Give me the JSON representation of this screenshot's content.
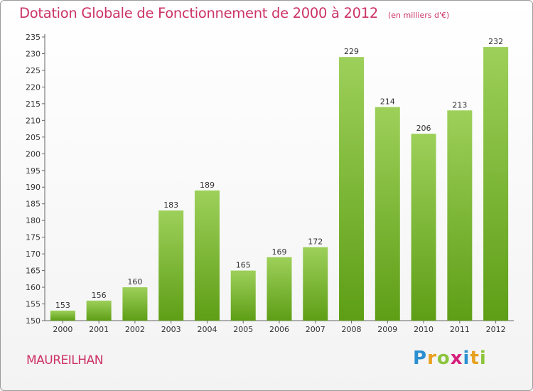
{
  "title": "Dotation Globale de Fonctionnement de 2000 à 2012",
  "subtitle": "(en milliers d'€)",
  "commune": "MAUREILHAN",
  "logo": {
    "letters": [
      {
        "ch": "P",
        "color": "#2a8fd0"
      },
      {
        "ch": "r",
        "color": "#e8a020"
      },
      {
        "ch": "o",
        "color": "#8cc43c"
      },
      {
        "ch": "x",
        "color": "#d6207c"
      },
      {
        "ch": "i",
        "color": "#2a8fd0"
      },
      {
        "ch": "t",
        "color": "#e8a020"
      },
      {
        "ch": "i",
        "color": "#8cc43c"
      }
    ]
  },
  "colors": {
    "accent": "#cc3366",
    "bar_top": "#9dd05a",
    "bar_bottom": "#5e9e16"
  },
  "chart_data": {
    "type": "bar",
    "title": "Dotation Globale de Fonctionnement de 2000 à 2012",
    "categories": [
      "2000",
      "2001",
      "2002",
      "2003",
      "2004",
      "2005",
      "2006",
      "2007",
      "2008",
      "2009",
      "2010",
      "2011",
      "2012"
    ],
    "values": [
      153,
      156,
      160,
      183,
      189,
      165,
      169,
      172,
      229,
      214,
      206,
      213,
      232
    ],
    "ylim": [
      150,
      235
    ],
    "yticks": [
      150,
      155,
      160,
      165,
      170,
      175,
      180,
      185,
      190,
      195,
      200,
      205,
      210,
      215,
      220,
      225,
      230,
      235
    ],
    "grid": false,
    "xlabel": "",
    "ylabel": ""
  }
}
